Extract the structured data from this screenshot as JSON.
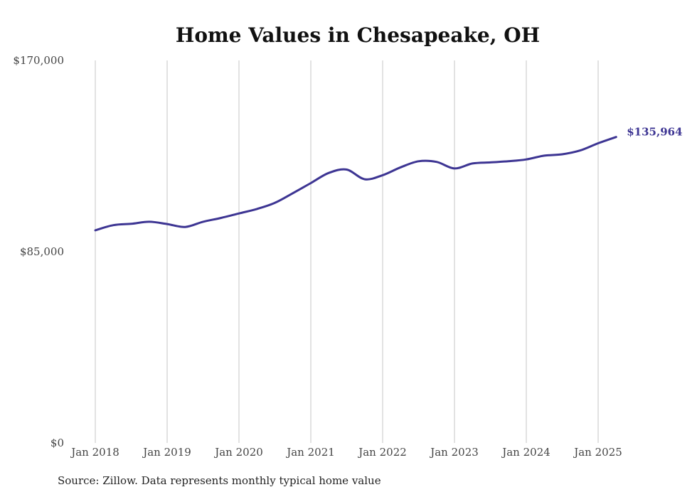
{
  "chart_data": {
    "type": "line",
    "title": "Home Values in Chesapeake, OH",
    "xlabel": "",
    "ylabel": "",
    "categories": [
      "Jan 2018",
      "Jan 2019",
      "Jan 2020",
      "Jan 2021",
      "Jan 2022",
      "Jan 2023",
      "Jan 2024",
      "Jan 2025"
    ],
    "y_ticks": [
      "$0",
      "$85,000",
      "$170,000"
    ],
    "ylim": [
      0,
      170000
    ],
    "grid": "vertical",
    "line_color": "#3d3593",
    "end_label": "$135,964",
    "series": [
      {
        "name": "",
        "x": [
          "2018-01",
          "2018-04",
          "2018-07",
          "2018-10",
          "2019-01",
          "2019-04",
          "2019-07",
          "2019-10",
          "2020-01",
          "2020-04",
          "2020-07",
          "2020-10",
          "2021-01",
          "2021-04",
          "2021-07",
          "2021-10",
          "2022-01",
          "2022-04",
          "2022-07",
          "2022-10",
          "2023-01",
          "2023-04",
          "2023-07",
          "2023-10",
          "2024-01",
          "2024-04",
          "2024-07",
          "2024-10",
          "2025-01",
          "2025-04"
        ],
        "values": [
          94500,
          96800,
          97400,
          98300,
          97300,
          96000,
          98300,
          100000,
          102000,
          104000,
          106700,
          111000,
          115500,
          120000,
          121500,
          117200,
          119000,
          122500,
          125200,
          124900,
          122000,
          124200,
          124700,
          125200,
          126000,
          127700,
          128300,
          130000,
          133200,
          135964
        ]
      }
    ]
  },
  "source_note": "Source: Zillow. Data represents monthly typical home value"
}
